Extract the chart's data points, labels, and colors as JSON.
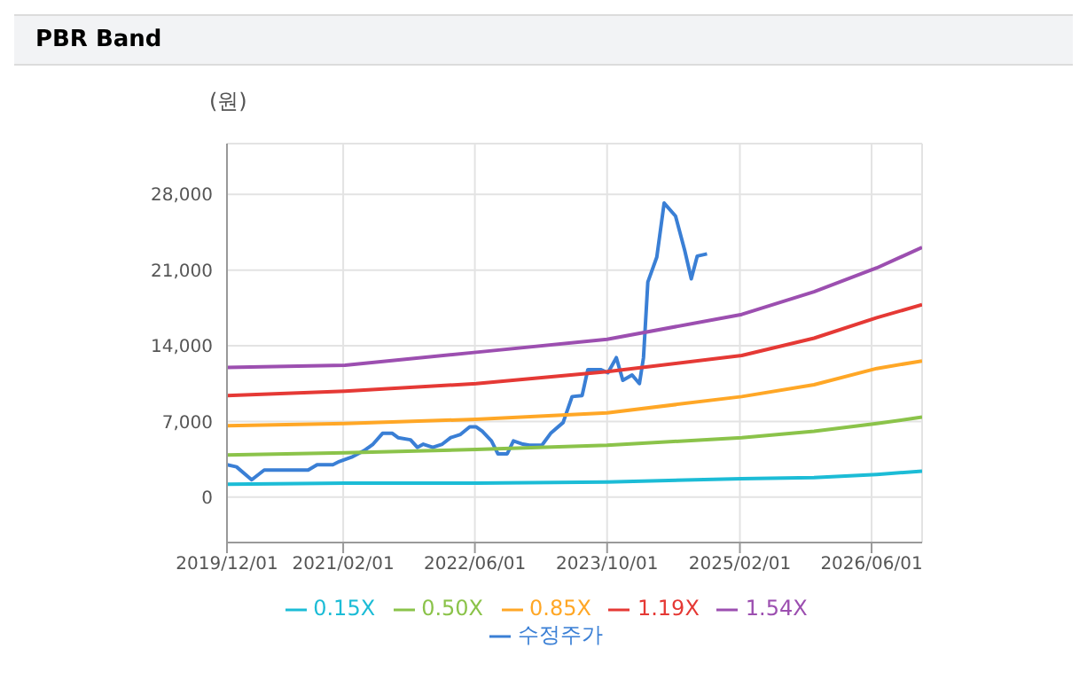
{
  "chart_data": {
    "type": "line",
    "title": "PBR Band",
    "ylabel": "(원)",
    "xlim": [
      "2019-12-01",
      "2026-12-04"
    ],
    "xticks": [
      {
        "value": "2019-12-01",
        "label": "2019/12/01"
      },
      {
        "value": "2021-02-01",
        "label": "2021/02/01"
      },
      {
        "value": "2022-06-01",
        "label": "2022/06/01"
      },
      {
        "value": "2023-10-01",
        "label": "2023/10/01"
      },
      {
        "value": "2025-02-01",
        "label": "2025/02/01"
      },
      {
        "value": "2026-06-01",
        "label": "2026/06/01"
      }
    ],
    "ylim": [
      -4200,
      32700
    ],
    "yticks": [
      0,
      {
        "value": 7000,
        "label": "7,000"
      },
      {
        "value": 14000,
        "label": "14,000"
      },
      {
        "value": 21000,
        "label": "21,000"
      },
      {
        "value": 28000,
        "label": "28,000"
      }
    ],
    "grid": true,
    "legend": "bottom",
    "marker": "none",
    "line_style": "solid",
    "series": [
      {
        "name": "수정주가",
        "color": "#3a7fd5",
        "x": [
          "2019-12-01",
          "2020-01-05",
          "2020-03-01",
          "2020-04-16",
          "2020-09-25",
          "2020-10-28",
          "2020-12-25",
          "2021-01-18",
          "2021-03-04",
          "2021-04-19",
          "2021-05-22",
          "2021-06-26",
          "2021-08-01",
          "2021-08-22",
          "2021-10-07",
          "2021-11-01",
          "2021-11-23",
          "2021-12-28",
          "2022-02-01",
          "2022-03-04",
          "2022-04-09",
          "2022-05-13",
          "2022-06-06",
          "2022-06-28",
          "2022-08-01",
          "2022-08-25",
          "2022-09-28",
          "2022-10-21",
          "2022-11-25",
          "2022-12-19",
          "2023-02-03",
          "2023-03-07",
          "2023-04-22",
          "2023-05-25",
          "2023-07-01",
          "2023-07-22",
          "2023-09-07",
          "2023-10-04",
          "2023-11-04",
          "2023-11-28",
          "2024-01-01",
          "2024-01-28",
          "2024-02-12",
          "2024-02-28",
          "2024-04-01",
          "2024-04-28",
          "2024-06-09",
          "2024-07-13",
          "2024-08-06",
          "2024-08-28",
          "2024-10-03"
        ],
        "values": [
          3000,
          2800,
          1600,
          2500,
          2500,
          3000,
          3000,
          3300,
          3700,
          4300,
          4900,
          5900,
          5900,
          5500,
          5300,
          4600,
          4900,
          4600,
          4900,
          5500,
          5800,
          6500,
          6500,
          6100,
          5200,
          4000,
          4000,
          5200,
          4900,
          4800,
          4800,
          5900,
          6900,
          9300,
          9400,
          11800,
          11800,
          11500,
          12900,
          10800,
          11300,
          10500,
          12900,
          19900,
          22200,
          27200,
          26000,
          22800,
          20200,
          22300,
          22500
        ]
      },
      {
        "name": "0.15X",
        "color": "#1cbcd6",
        "x": [
          "2019-12-01",
          "2021-02-08",
          "2022-06-06",
          "2023-10-01",
          "2025-02-08",
          "2025-11-01",
          "2026-06-20",
          "2026-12-04"
        ],
        "values": [
          1200,
          1300,
          1300,
          1400,
          1700,
          1800,
          2100,
          2400
        ]
      },
      {
        "name": "0.50X",
        "color": "#8bc34a",
        "x": [
          "2019-12-01",
          "2021-02-08",
          "2022-06-06",
          "2023-10-01",
          "2025-02-08",
          "2025-11-01",
          "2026-06-20",
          "2026-12-04"
        ],
        "values": [
          3900,
          4100,
          4400,
          4800,
          5500,
          6100,
          6800,
          7400
        ]
      },
      {
        "name": "0.85X",
        "color": "#ffa726",
        "x": [
          "2019-12-01",
          "2021-02-08",
          "2022-06-06",
          "2023-10-01",
          "2025-02-08",
          "2025-11-01",
          "2026-06-20",
          "2026-12-04"
        ],
        "values": [
          6600,
          6800,
          7200,
          7800,
          9300,
          10400,
          11900,
          12600
        ]
      },
      {
        "name": "1.19X",
        "color": "#e53935",
        "x": [
          "2019-12-01",
          "2021-02-08",
          "2022-06-06",
          "2023-10-01",
          "2025-02-08",
          "2025-11-01",
          "2026-06-20",
          "2026-12-04"
        ],
        "values": [
          9400,
          9800,
          10500,
          11600,
          13100,
          14700,
          16600,
          17800
        ]
      },
      {
        "name": "1.54X",
        "color": "#9c4fb0",
        "x": [
          "2019-12-01",
          "2021-02-08",
          "2022-06-06",
          "2023-10-01",
          "2025-02-08",
          "2025-11-01",
          "2026-06-20",
          "2026-12-04"
        ],
        "values": [
          12000,
          12200,
          13400,
          14600,
          16900,
          19000,
          21200,
          23100
        ]
      }
    ]
  }
}
